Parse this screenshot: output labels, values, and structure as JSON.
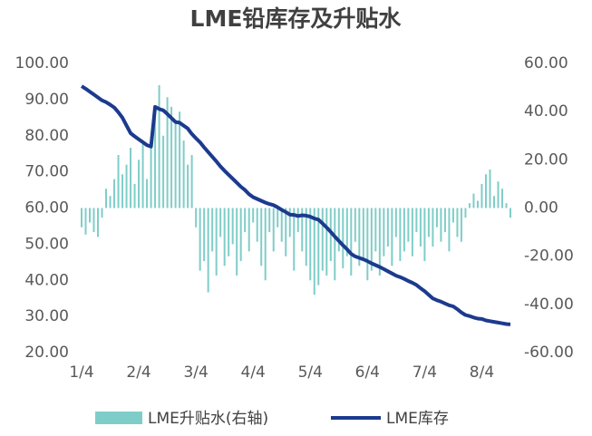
{
  "chart_data": {
    "type": "combo",
    "title": "LME铅库存及升贴水",
    "categories": [
      "1/4",
      null,
      null,
      null,
      null,
      null,
      null,
      null,
      null,
      null,
      null,
      null,
      null,
      null,
      "2/4",
      null,
      null,
      null,
      null,
      null,
      null,
      null,
      null,
      null,
      null,
      null,
      null,
      null,
      "3/4",
      null,
      null,
      null,
      null,
      null,
      null,
      null,
      null,
      null,
      null,
      null,
      null,
      null,
      "4/4",
      null,
      null,
      null,
      null,
      null,
      null,
      null,
      null,
      null,
      null,
      null,
      null,
      null,
      "5/4",
      null,
      null,
      null,
      null,
      null,
      null,
      null,
      null,
      null,
      null,
      null,
      null,
      null,
      "6/4",
      null,
      null,
      null,
      null,
      null,
      null,
      null,
      null,
      null,
      null,
      null,
      null,
      null,
      "7/4",
      null,
      null,
      null,
      null,
      null,
      null,
      null,
      null,
      null,
      null,
      null,
      null,
      null,
      "8/4",
      null,
      null,
      null,
      null,
      null,
      null,
      null
    ],
    "series": [
      {
        "name": "LME升贴水(右轴)",
        "type": "bar",
        "axis": "y2",
        "color": "#7fcdc8",
        "values": [
          -8,
          -11,
          -6,
          -10,
          -12,
          -4,
          8,
          5,
          12,
          22,
          14,
          18,
          25,
          10,
          20,
          28,
          12,
          25,
          38,
          51,
          30,
          46,
          42,
          35,
          40,
          28,
          18,
          22,
          -8,
          -26,
          -22,
          -35,
          -18,
          -28,
          -12,
          -24,
          -20,
          -15,
          -28,
          -22,
          -10,
          -18,
          -6,
          -14,
          -24,
          -30,
          -10,
          -18,
          -8,
          -14,
          -20,
          -12,
          -26,
          -10,
          -18,
          -24,
          -30,
          -36,
          -32,
          -26,
          -28,
          -22,
          -30,
          -18,
          -25,
          -20,
          -28,
          -14,
          -24,
          -22,
          -30,
          -26,
          -18,
          -28,
          -20,
          -16,
          -24,
          -12,
          -22,
          -18,
          -14,
          -20,
          -10,
          -16,
          -22,
          -12,
          -16,
          -8,
          -14,
          -10,
          -18,
          -6,
          -12,
          -14,
          -4,
          2,
          6,
          3,
          10,
          14,
          16,
          5,
          11,
          8,
          2,
          -4
        ]
      },
      {
        "name": "LME库存",
        "type": "line",
        "color": "#1c3a8e",
        "values": [
          93.7,
          93,
          92.2,
          91.4,
          90.6,
          89.8,
          89.3,
          88.6,
          87.8,
          86.5,
          85,
          82.8,
          80.7,
          79.8,
          79,
          78.2,
          77.4,
          77,
          88,
          87.4,
          87,
          86,
          84.9,
          83.8,
          83.6,
          82.8,
          82,
          80.5,
          79.3,
          78.2,
          76.8,
          75.5,
          74.2,
          72.9,
          71.5,
          70.3,
          69.2,
          68.1,
          67,
          65.9,
          65,
          63.8,
          63,
          62.5,
          62,
          61.5,
          61.1,
          60.8,
          60.2,
          59.5,
          58.9,
          58.2,
          58.1,
          57.8,
          58,
          57.9,
          57.6,
          57.1,
          56.8,
          55.7,
          54.6,
          53.4,
          52.1,
          50.9,
          49.7,
          48.6,
          47.3,
          46.6,
          46.2,
          45.8,
          45.3,
          44.7,
          44.2,
          43.7,
          43.1,
          42.5,
          41.9,
          41.3,
          40.9,
          40.4,
          39.8,
          39.3,
          38.7,
          37.8,
          37,
          36,
          35,
          34.5,
          34.1,
          33.6,
          33.1,
          32.8,
          32,
          31.1,
          30.4,
          30.1,
          29.7,
          29.4,
          29.3,
          28.9,
          28.7,
          28.5,
          28.3,
          28.1,
          27.9,
          27.8
        ]
      }
    ],
    "ylim": [
      20,
      100
    ],
    "yticks": [
      {
        "value": 20,
        "label": "20.00"
      },
      {
        "value": 30,
        "label": "30.00"
      },
      {
        "value": 40,
        "label": "40.00"
      },
      {
        "value": 50,
        "label": "50.00"
      },
      {
        "value": 60,
        "label": "60.00"
      },
      {
        "value": 70,
        "label": "70.00"
      },
      {
        "value": 80,
        "label": "80.00"
      },
      {
        "value": 90,
        "label": "90.00"
      },
      {
        "value": 100,
        "label": "100.00"
      }
    ],
    "y2lim": [
      -60,
      60
    ],
    "y2ticks": [
      {
        "value": -60,
        "label": "-60.00"
      },
      {
        "value": -40,
        "label": "-40.00"
      },
      {
        "value": -20,
        "label": "-20.00"
      },
      {
        "value": 0,
        "label": "0.00"
      },
      {
        "value": 20,
        "label": "20.00"
      },
      {
        "value": 40,
        "label": "40.00"
      },
      {
        "value": 60,
        "label": "60.00"
      }
    ],
    "grid": false,
    "legend": "bottom"
  }
}
